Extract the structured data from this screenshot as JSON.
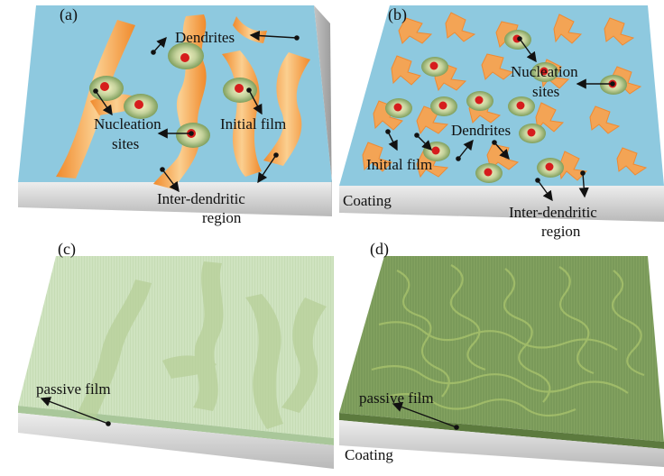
{
  "panels": {
    "a": {
      "label": "(a)",
      "annotations": {
        "dendrites": "Dendrites",
        "nucleation_line1": "Nucleation",
        "nucleation_line2": "sites",
        "initial_film": "Initial film",
        "inter_line1": "Inter-dendritic",
        "inter_line2": "region"
      }
    },
    "b": {
      "label": "(b)",
      "annotations": {
        "nucleation_line1": "Nucleation",
        "nucleation_line2": "sites",
        "dendrites": "Dendrites",
        "initial_film": "Initial film",
        "coating": "Coating",
        "inter_line1": "Inter-dendritic",
        "inter_line2": "region"
      }
    },
    "c": {
      "label": "(c)",
      "annotations": {
        "passive_film": "passive film"
      }
    },
    "d": {
      "label": "(d)",
      "annotations": {
        "passive_film": "passive film",
        "coating": "Coating"
      }
    }
  },
  "colors": {
    "substrate_top": "#8ec9df",
    "substrate_side": "#c8c8c8",
    "dendrite": "#f3a455",
    "dendrite_light": "#fbd7a0",
    "nucleation_core": "#d61d1d",
    "nucleation_halo": "#a9bf86",
    "passive_film_c": "#c9dfb8",
    "passive_film_d": "#6f8f52"
  }
}
